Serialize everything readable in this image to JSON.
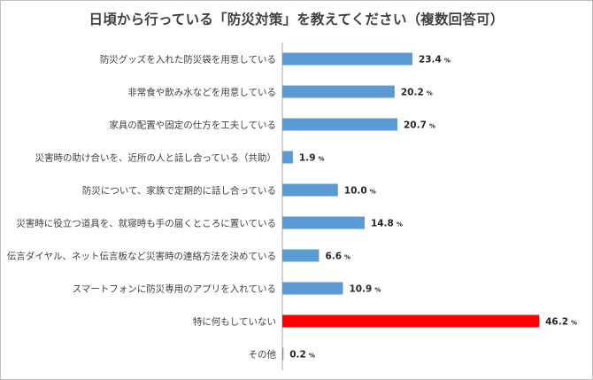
{
  "chart_data": {
    "type": "bar",
    "orientation": "horizontal",
    "title": "日頃から行っている「防災対策」を教えてください（複数回答可）",
    "unit": "%",
    "categories": [
      "防災グッズを入れた防災袋を用意している",
      "非常食や飲み水などを用意している",
      "家具の配置や固定の仕方を工夫している",
      "災害時の助け合いを、近所の人と話し合っている（共助）",
      "防災について、家族で定期的に話し合っている",
      "災害時に役立つ道具を、就寝時も手の届くところに置いている",
      "伝言ダイヤル、ネット伝言板など災害時の連絡方法を決めている",
      "スマートフォンに防災専用のアプリを入れている",
      "特に何もしていない",
      "その他"
    ],
    "values": [
      23.4,
      20.2,
      20.7,
      1.9,
      10.0,
      14.8,
      6.6,
      10.9,
      46.2,
      0.2
    ],
    "value_labels": [
      "23.4",
      "20.2",
      "20.7",
      "1.9",
      "10.0",
      "14.8",
      "6.6",
      "10.9",
      "46.2",
      "0.2"
    ],
    "highlight_index": 8,
    "xlim": [
      0,
      50
    ],
    "grid": false,
    "legend": "none"
  },
  "colors": {
    "bar": "#5b9bd5",
    "highlight": "#ff0000",
    "label": "#404040",
    "highlight_label": "#ff0000",
    "axis": "#a6a6a6"
  }
}
